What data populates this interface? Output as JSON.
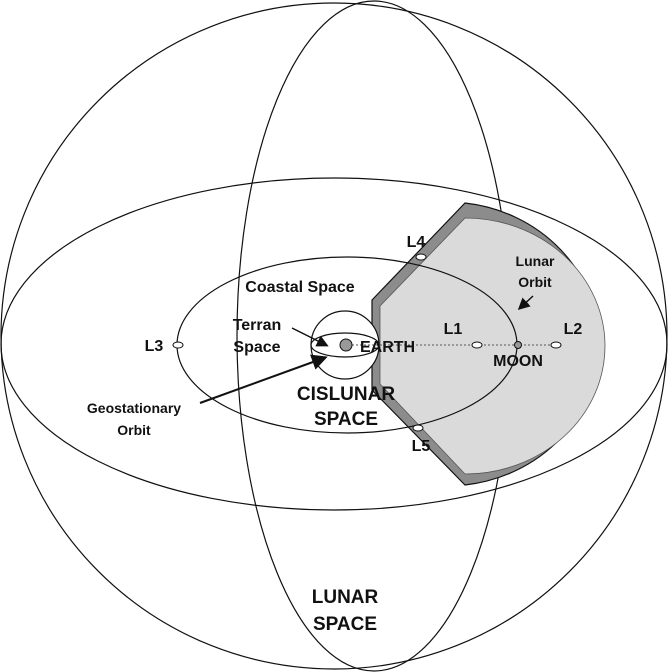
{
  "labels": {
    "lunar_space": [
      "LUNAR",
      "SPACE"
    ],
    "cislunar_space": [
      "CISLUNAR",
      "SPACE"
    ],
    "coastal_space": "Coastal Space",
    "terran_space": [
      "Terran",
      "Space"
    ],
    "geostationary_orbit": [
      "Geostationary",
      "Orbit"
    ],
    "lunar_orbit": [
      "Lunar",
      "Orbit"
    ],
    "earth": "EARTH",
    "moon": "MOON",
    "l1": "L1",
    "l2": "L2",
    "l3": "L3",
    "l4": "L4",
    "l5": "L5"
  }
}
